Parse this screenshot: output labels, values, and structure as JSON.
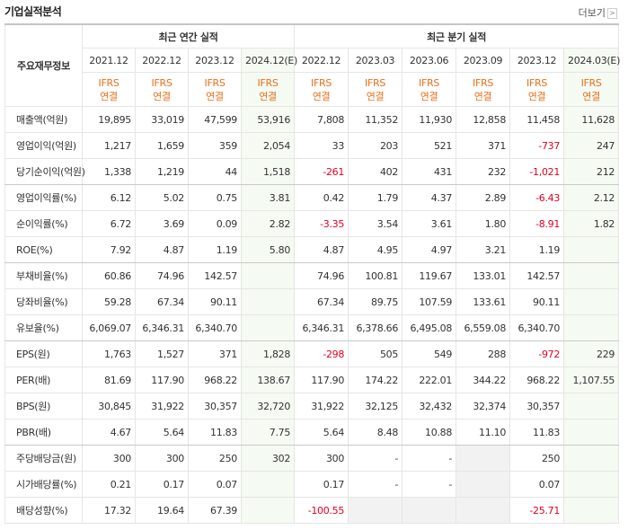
{
  "title": "기업실적분석",
  "more_link": "더보기",
  "table": {
    "corner": "주요재무정보",
    "groups": [
      {
        "label": "최근 연간 실적"
      },
      {
        "label": "최근 분기 실적"
      }
    ],
    "periods": [
      "2021.12",
      "2022.12",
      "2023.12",
      "2024.12(E)",
      "2022.12",
      "2023.03",
      "2023.06",
      "2023.09",
      "2023.12",
      "2024.03(E)"
    ],
    "basis": [
      {
        "standard": "IFRS",
        "scope": "연결"
      },
      {
        "standard": "IFRS",
        "scope": "연결"
      },
      {
        "standard": "IFRS",
        "scope": "연결"
      },
      {
        "standard": "IFRS",
        "scope": "연결"
      },
      {
        "standard": "IFRS",
        "scope": "연결"
      },
      {
        "standard": "IFRS",
        "scope": "연결"
      },
      {
        "standard": "IFRS",
        "scope": "연결"
      },
      {
        "standard": "IFRS",
        "scope": "연결"
      },
      {
        "standard": "IFRS",
        "scope": "연결"
      },
      {
        "standard": "IFRS",
        "scope": "연결"
      }
    ],
    "rows": [
      {
        "label": "매출액(억원)",
        "values": [
          "19,895",
          "33,019",
          "47,599",
          "53,916",
          "7,808",
          "11,352",
          "11,930",
          "12,858",
          "11,458",
          "11,628"
        ]
      },
      {
        "label": "영업이익(억원)",
        "values": [
          "1,217",
          "1,659",
          "359",
          "2,054",
          "33",
          "203",
          "521",
          "371",
          "-737",
          "247"
        ]
      },
      {
        "label": "당기순이익(억원)",
        "values": [
          "1,338",
          "1,219",
          "44",
          "1,518",
          "-261",
          "402",
          "431",
          "232",
          "-1,021",
          "212"
        ]
      },
      {
        "label": "영업이익률(%)",
        "values": [
          "6.12",
          "5.02",
          "0.75",
          "3.81",
          "0.42",
          "1.79",
          "4.37",
          "2.89",
          "-6.43",
          "2.12"
        ]
      },
      {
        "label": "순이익률(%)",
        "values": [
          "6.72",
          "3.69",
          "0.09",
          "2.82",
          "-3.35",
          "3.54",
          "3.61",
          "1.80",
          "-8.91",
          "1.82"
        ]
      },
      {
        "label": "ROE(%)",
        "values": [
          "7.92",
          "4.87",
          "1.19",
          "5.80",
          "4.87",
          "4.95",
          "4.97",
          "3.21",
          "1.19",
          null
        ]
      },
      {
        "label": "부채비율(%)",
        "values": [
          "60.86",
          "74.96",
          "142.57",
          null,
          "74.96",
          "100.81",
          "119.67",
          "133.01",
          "142.57",
          null
        ]
      },
      {
        "label": "당좌비율(%)",
        "values": [
          "59.28",
          "67.34",
          "90.11",
          null,
          "67.34",
          "89.75",
          "107.59",
          "133.61",
          "90.11",
          null
        ]
      },
      {
        "label": "유보율(%)",
        "values": [
          "6,069.07",
          "6,346.31",
          "6,340.70",
          null,
          "6,346.31",
          "6,378.66",
          "6,495.08",
          "6,559.08",
          "6,340.70",
          null
        ]
      },
      {
        "label": "EPS(원)",
        "values": [
          "1,763",
          "1,527",
          "371",
          "1,828",
          "-298",
          "505",
          "549",
          "288",
          "-972",
          "229"
        ]
      },
      {
        "label": "PER(배)",
        "values": [
          "81.69",
          "117.90",
          "968.22",
          "138.67",
          "117.90",
          "174.22",
          "222.01",
          "344.22",
          "968.22",
          "1,107.55"
        ]
      },
      {
        "label": "BPS(원)",
        "values": [
          "30,845",
          "31,922",
          "30,357",
          "32,720",
          "31,922",
          "32,125",
          "32,432",
          "32,374",
          "30,357",
          null
        ]
      },
      {
        "label": "PBR(배)",
        "values": [
          "4.67",
          "5.64",
          "11.83",
          "7.75",
          "5.64",
          "8.48",
          "10.88",
          "11.10",
          "11.83",
          null
        ]
      },
      {
        "label": "주당배당금(원)",
        "values": [
          "300",
          "300",
          "250",
          "302",
          "300",
          "-",
          "-",
          null,
          "250",
          null
        ]
      },
      {
        "label": "시가배당률(%)",
        "values": [
          "0.21",
          "0.17",
          "0.07",
          null,
          "0.17",
          "-",
          "-",
          null,
          "0.07",
          null
        ]
      },
      {
        "label": "배당성향(%)",
        "values": [
          "17.32",
          "19.64",
          "67.39",
          null,
          "-100.55",
          null,
          null,
          null,
          "-25.71",
          null
        ]
      }
    ]
  }
}
